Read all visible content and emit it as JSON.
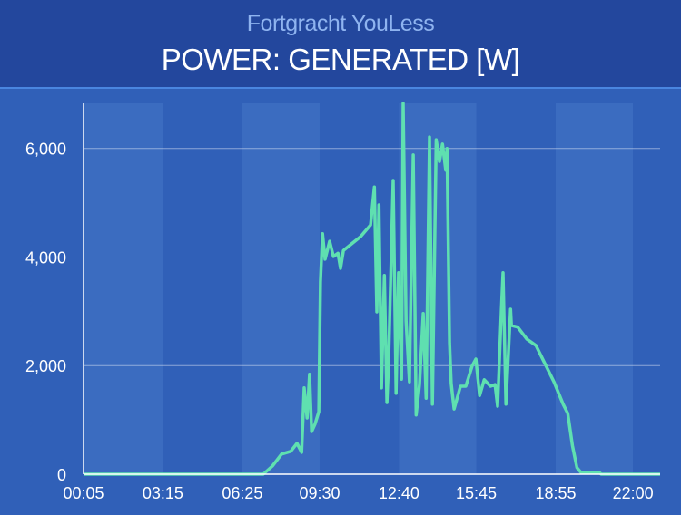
{
  "header": {
    "subtitle": "Fortgracht YouLess",
    "title": "POWER: GENERATED [W]"
  },
  "colors": {
    "header_bg": "#23479d",
    "plot_bg": "#3060b8",
    "band": "#3b6cc0",
    "line": "#5fe0b0",
    "subtitle": "#8fb4f0"
  },
  "chart_data": {
    "type": "line",
    "title": "POWER: GENERATED [W]",
    "xlabel": "",
    "ylabel": "",
    "xlim": [
      "00:05",
      "23:05"
    ],
    "ylim": [
      0,
      6830
    ],
    "x_ticks": [
      "00:05",
      "03:15",
      "06:25",
      "09:30",
      "12:40",
      "15:45",
      "18:55",
      "22:00"
    ],
    "y_ticks": [
      {
        "value": 0,
        "label": "0"
      },
      {
        "value": 2000,
        "label": "2,000"
      },
      {
        "value": 4000,
        "label": "4,000"
      },
      {
        "value": 6000,
        "label": "6,000"
      }
    ],
    "grid": true,
    "alternating_bands": true,
    "series": [
      {
        "x": [
          "00:05",
          "07:00",
          "07:15",
          "07:37",
          "07:59",
          "08:21",
          "08:36",
          "08:47",
          "08:53",
          "09:00",
          "09:06",
          "09:11",
          "09:19",
          "09:28",
          "09:32",
          "09:37",
          "09:43",
          "09:54",
          "10:03",
          "10:14",
          "10:20",
          "10:27",
          "10:46",
          "11:08",
          "11:32",
          "11:41",
          "11:47",
          "11:52",
          "11:58",
          "12:05",
          "12:11",
          "12:15",
          "12:26",
          "12:33",
          "12:39",
          "12:46",
          "12:50",
          "12:57",
          "13:05",
          "13:14",
          "13:21",
          "13:29",
          "13:38",
          "13:45",
          "13:53",
          "14:00",
          "14:09",
          "14:17",
          "14:24",
          "14:32",
          "14:35",
          "14:41",
          "14:45",
          "14:52",
          "15:07",
          "15:20",
          "15:35",
          "15:44",
          "15:53",
          "16:04",
          "16:19",
          "16:30",
          "16:36",
          "16:45",
          "16:49",
          "16:56",
          "17:07",
          "17:09",
          "17:24",
          "17:46",
          "18:08",
          "18:29",
          "18:51",
          "19:13",
          "19:24",
          "19:35",
          "19:46",
          "19:56",
          "20:40",
          "20:44",
          "23:05"
        ],
        "values": [
          0,
          0,
          0,
          150,
          370,
          420,
          570,
          400,
          1590,
          1035,
          1840,
          785,
          920,
          1150,
          3540,
          4430,
          3960,
          4290,
          4010,
          4070,
          3790,
          4120,
          4240,
          4375,
          4590,
          5290,
          2990,
          4960,
          1590,
          3660,
          1320,
          2040,
          5410,
          1490,
          3710,
          1750,
          6830,
          2820,
          1700,
          5880,
          1090,
          1650,
          2960,
          1400,
          6210,
          1290,
          6160,
          5760,
          6080,
          5600,
          6000,
          2420,
          1670,
          1200,
          1620,
          1620,
          1990,
          2120,
          1450,
          1740,
          1620,
          1650,
          1250,
          2990,
          3710,
          1290,
          3040,
          2740,
          2710,
          2490,
          2370,
          2040,
          1700,
          1290,
          1120,
          530,
          120,
          30,
          30,
          0,
          0
        ]
      }
    ]
  }
}
